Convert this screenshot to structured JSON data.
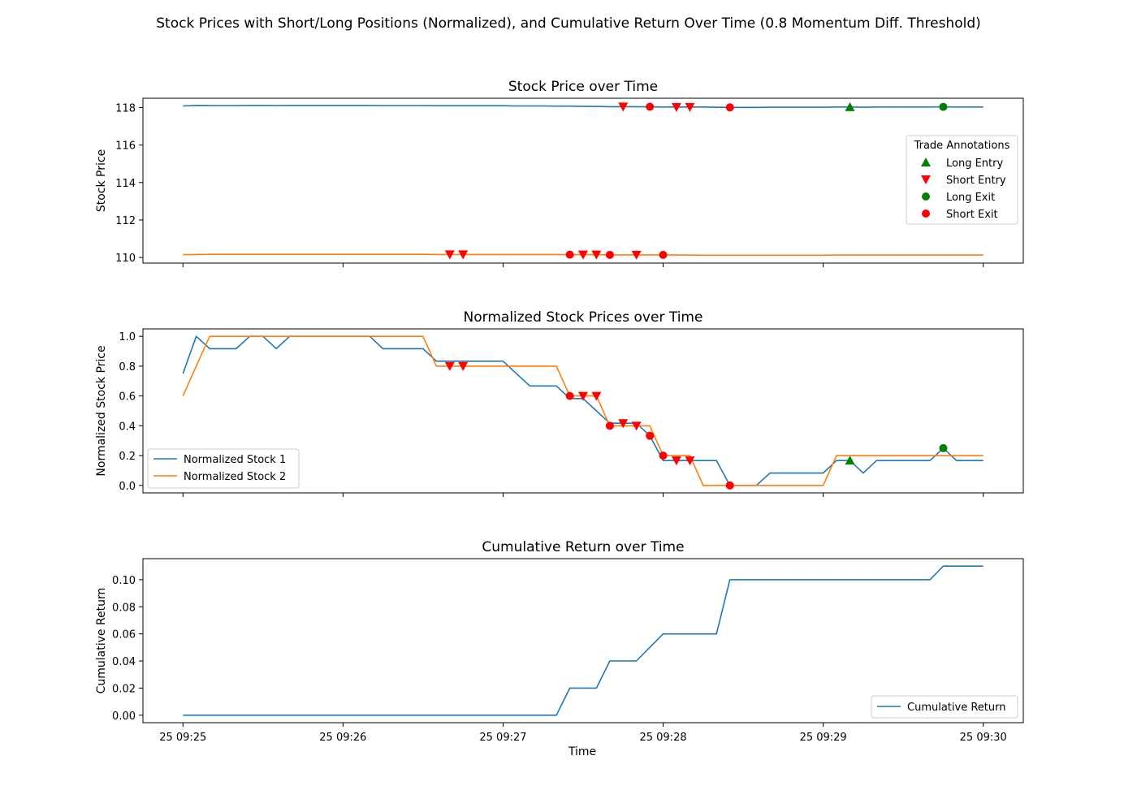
{
  "suptitle": "Stock Prices with Short/Long Positions (Normalized), and Cumulative Return Over Time (0.8 Momentum Diff. Threshold)",
  "x_tick_labels": [
    "25 09:25",
    "25 09:26",
    "25 09:27",
    "25 09:28",
    "25 09:29",
    "25 09:30"
  ],
  "x_label": "Time",
  "colors": {
    "series1": "#1f77b4",
    "series2": "#ff7f0e",
    "long": "#008000",
    "short": "#ff0000"
  },
  "chart_data": [
    {
      "type": "line",
      "title": "Stock Price over Time",
      "xlabel": "",
      "ylabel": "Stock Price",
      "xlim": [
        -0.25,
        5.25
      ],
      "ylim": [
        109.7,
        118.5
      ],
      "yticks": [
        110,
        112,
        114,
        116,
        118
      ],
      "ytick_labels": [
        "110",
        "112",
        "114",
        "116",
        "118"
      ],
      "series": [
        {
          "key": "series1",
          "x": [
            0,
            0.083,
            0.167,
            0.25,
            0.333,
            0.417,
            0.5,
            0.583,
            0.667,
            0.75,
            0.833,
            0.917,
            1.0,
            1.083,
            1.167,
            1.25,
            1.333,
            1.417,
            1.5,
            1.583,
            1.667,
            1.75,
            1.833,
            1.917,
            2.0,
            2.083,
            2.167,
            2.25,
            2.333,
            2.417,
            2.5,
            2.583,
            2.667,
            2.75,
            2.833,
            2.917,
            3.0,
            3.083,
            3.167,
            3.25,
            3.333,
            3.417,
            3.5,
            3.583,
            3.667,
            3.75,
            3.833,
            3.917,
            4.0,
            4.083,
            4.167,
            4.25,
            4.333,
            4.417,
            4.5,
            4.583,
            4.667,
            4.75,
            4.833,
            4.917,
            5.0
          ],
          "y": [
            118.09,
            118.12,
            118.11,
            118.11,
            118.11,
            118.12,
            118.12,
            118.11,
            118.12,
            118.12,
            118.12,
            118.12,
            118.12,
            118.12,
            118.12,
            118.11,
            118.11,
            118.11,
            118.11,
            118.1,
            118.1,
            118.1,
            118.1,
            118.1,
            118.1,
            118.09,
            118.09,
            118.09,
            118.08,
            118.08,
            118.07,
            118.06,
            118.05,
            118.05,
            118.05,
            118.04,
            118.03,
            118.03,
            118.03,
            118.03,
            118.02,
            118.01,
            118.01,
            118.01,
            118.02,
            118.02,
            118.02,
            118.02,
            118.02,
            118.03,
            118.03,
            118.02,
            118.03,
            118.03,
            118.03,
            118.03,
            118.03,
            118.04,
            118.03,
            118.03,
            118.03
          ]
        },
        {
          "key": "series2",
          "x": [
            0,
            0.083,
            0.167,
            0.25,
            0.333,
            0.417,
            0.5,
            0.583,
            0.667,
            0.75,
            0.833,
            0.917,
            1.0,
            1.083,
            1.167,
            1.25,
            1.333,
            1.417,
            1.5,
            1.583,
            1.667,
            1.75,
            1.833,
            1.917,
            2.0,
            2.083,
            2.167,
            2.25,
            2.333,
            2.417,
            2.5,
            2.583,
            2.667,
            2.75,
            2.833,
            2.917,
            3.0,
            3.083,
            3.167,
            3.25,
            3.333,
            3.417,
            3.5,
            3.583,
            3.667,
            3.75,
            3.833,
            3.917,
            4.0,
            4.083,
            4.167,
            4.25,
            4.333,
            4.417,
            4.5,
            4.583,
            4.667,
            4.75,
            4.833,
            4.917,
            5.0
          ],
          "y": [
            110.15,
            110.16,
            110.17,
            110.17,
            110.17,
            110.17,
            110.17,
            110.17,
            110.17,
            110.17,
            110.17,
            110.17,
            110.17,
            110.17,
            110.17,
            110.17,
            110.17,
            110.17,
            110.17,
            110.16,
            110.16,
            110.16,
            110.16,
            110.16,
            110.16,
            110.16,
            110.16,
            110.16,
            110.16,
            110.15,
            110.15,
            110.15,
            110.14,
            110.14,
            110.14,
            110.14,
            110.14,
            110.13,
            110.13,
            110.12,
            110.12,
            110.12,
            110.12,
            110.12,
            110.12,
            110.12,
            110.12,
            110.12,
            110.12,
            110.13,
            110.13,
            110.13,
            110.13,
            110.13,
            110.13,
            110.13,
            110.13,
            110.13,
            110.13,
            110.13,
            110.13
          ]
        }
      ],
      "markers": [
        {
          "kind": "short_entry",
          "x": 2.75,
          "y": 118.05
        },
        {
          "kind": "short_exit",
          "x": 2.917,
          "y": 118.05
        },
        {
          "kind": "short_entry",
          "x": 3.083,
          "y": 118.03
        },
        {
          "kind": "short_entry",
          "x": 3.167,
          "y": 118.03
        },
        {
          "kind": "short_exit",
          "x": 3.417,
          "y": 118.01
        },
        {
          "kind": "long_entry",
          "x": 4.167,
          "y": 118.03
        },
        {
          "kind": "long_exit",
          "x": 4.75,
          "y": 118.04
        },
        {
          "kind": "short_entry",
          "x": 1.667,
          "y": 110.16
        },
        {
          "kind": "short_entry",
          "x": 1.75,
          "y": 110.16
        },
        {
          "kind": "short_exit",
          "x": 2.417,
          "y": 110.15
        },
        {
          "kind": "short_entry",
          "x": 2.5,
          "y": 110.15
        },
        {
          "kind": "short_entry",
          "x": 2.583,
          "y": 110.15
        },
        {
          "kind": "short_exit",
          "x": 2.667,
          "y": 110.14
        },
        {
          "kind": "short_entry",
          "x": 2.833,
          "y": 110.14
        },
        {
          "kind": "short_exit",
          "x": 3.0,
          "y": 110.14
        }
      ],
      "legend": {
        "title": "Trade Annotations",
        "placement": "center-right",
        "entries": [
          {
            "label": "Long Entry",
            "kind": "long_entry"
          },
          {
            "label": "Short Entry",
            "kind": "short_entry"
          },
          {
            "label": "Long Exit",
            "kind": "long_exit"
          },
          {
            "label": "Short Exit",
            "kind": "short_exit"
          }
        ]
      }
    },
    {
      "type": "line",
      "title": "Normalized Stock Prices over Time",
      "xlabel": "",
      "ylabel": "Normalized Stock Price",
      "xlim": [
        -0.25,
        5.25
      ],
      "ylim": [
        -0.05,
        1.05
      ],
      "yticks": [
        0.0,
        0.2,
        0.4,
        0.6,
        0.8,
        1.0
      ],
      "ytick_labels": [
        "0.0",
        "0.2",
        "0.4",
        "0.6",
        "0.8",
        "1.0"
      ],
      "series": [
        {
          "key": "series1",
          "name": "Normalized Stock 1",
          "x": [
            0,
            0.083,
            0.167,
            0.25,
            0.333,
            0.417,
            0.5,
            0.583,
            0.667,
            0.75,
            0.833,
            0.917,
            1.0,
            1.083,
            1.167,
            1.25,
            1.333,
            1.417,
            1.5,
            1.583,
            1.667,
            1.75,
            1.833,
            1.917,
            2.0,
            2.083,
            2.167,
            2.25,
            2.333,
            2.417,
            2.5,
            2.583,
            2.667,
            2.75,
            2.833,
            2.917,
            3.0,
            3.083,
            3.167,
            3.25,
            3.333,
            3.417,
            3.5,
            3.583,
            3.667,
            3.75,
            3.833,
            3.917,
            4.0,
            4.083,
            4.167,
            4.25,
            4.333,
            4.417,
            4.5,
            4.583,
            4.667,
            4.75,
            4.833,
            4.917,
            5.0
          ],
          "y": [
            0.75,
            1.0,
            0.917,
            0.917,
            0.917,
            1.0,
            1.0,
            0.917,
            1.0,
            1.0,
            1.0,
            1.0,
            1.0,
            1.0,
            1.0,
            0.917,
            0.917,
            0.917,
            0.917,
            0.833,
            0.833,
            0.833,
            0.833,
            0.833,
            0.833,
            0.75,
            0.667,
            0.667,
            0.667,
            0.583,
            0.583,
            0.5,
            0.417,
            0.417,
            0.417,
            0.333,
            0.167,
            0.167,
            0.167,
            0.167,
            0.167,
            0.0,
            0.0,
            0.0,
            0.083,
            0.083,
            0.083,
            0.083,
            0.083,
            0.167,
            0.167,
            0.083,
            0.167,
            0.167,
            0.167,
            0.167,
            0.167,
            0.25,
            0.167,
            0.167,
            0.167
          ]
        },
        {
          "key": "series2",
          "name": "Normalized Stock 2",
          "x": [
            0,
            0.083,
            0.167,
            0.25,
            0.333,
            0.417,
            0.5,
            0.583,
            0.667,
            0.75,
            0.833,
            0.917,
            1.0,
            1.083,
            1.167,
            1.25,
            1.333,
            1.417,
            1.5,
            1.583,
            1.667,
            1.75,
            1.833,
            1.917,
            2.0,
            2.083,
            2.167,
            2.25,
            2.333,
            2.417,
            2.5,
            2.583,
            2.667,
            2.75,
            2.833,
            2.917,
            3.0,
            3.083,
            3.167,
            3.25,
            3.333,
            3.417,
            3.5,
            3.583,
            3.667,
            3.75,
            3.833,
            3.917,
            4.0,
            4.083,
            4.167,
            4.25,
            4.333,
            4.417,
            4.5,
            4.583,
            4.667,
            4.75,
            4.833,
            4.917,
            5.0
          ],
          "y": [
            0.6,
            0.8,
            1.0,
            1.0,
            1.0,
            1.0,
            1.0,
            1.0,
            1.0,
            1.0,
            1.0,
            1.0,
            1.0,
            1.0,
            1.0,
            1.0,
            1.0,
            1.0,
            1.0,
            0.8,
            0.8,
            0.8,
            0.8,
            0.8,
            0.8,
            0.8,
            0.8,
            0.8,
            0.8,
            0.6,
            0.6,
            0.6,
            0.4,
            0.4,
            0.4,
            0.4,
            0.2,
            0.2,
            0.2,
            0.0,
            0.0,
            0.0,
            0.0,
            0.0,
            0.0,
            0.0,
            0.0,
            0.0,
            0.0,
            0.2,
            0.2,
            0.2,
            0.2,
            0.2,
            0.2,
            0.2,
            0.2,
            0.2,
            0.2,
            0.2,
            0.2
          ]
        }
      ],
      "markers": [
        {
          "kind": "short_entry",
          "x": 1.667,
          "y": 0.8
        },
        {
          "kind": "short_entry",
          "x": 1.75,
          "y": 0.8
        },
        {
          "kind": "short_exit",
          "x": 2.417,
          "y": 0.6
        },
        {
          "kind": "short_entry",
          "x": 2.5,
          "y": 0.6
        },
        {
          "kind": "short_entry",
          "x": 2.583,
          "y": 0.6
        },
        {
          "kind": "short_exit",
          "x": 2.667,
          "y": 0.4
        },
        {
          "kind": "short_entry",
          "x": 2.75,
          "y": 0.417
        },
        {
          "kind": "short_entry",
          "x": 2.833,
          "y": 0.4
        },
        {
          "kind": "short_exit",
          "x": 2.917,
          "y": 0.333
        },
        {
          "kind": "short_exit",
          "x": 3.0,
          "y": 0.2
        },
        {
          "kind": "short_entry",
          "x": 3.083,
          "y": 0.167
        },
        {
          "kind": "short_entry",
          "x": 3.167,
          "y": 0.167
        },
        {
          "kind": "short_exit",
          "x": 3.417,
          "y": 0.0
        },
        {
          "kind": "long_entry",
          "x": 4.167,
          "y": 0.167
        },
        {
          "kind": "long_exit",
          "x": 4.75,
          "y": 0.25
        }
      ],
      "legend": {
        "placement": "lower-left",
        "entries": [
          {
            "label": "Normalized Stock 1",
            "key": "series1"
          },
          {
            "label": "Normalized Stock 2",
            "key": "series2"
          }
        ]
      }
    },
    {
      "type": "line",
      "title": "Cumulative Return over Time",
      "xlabel": "Time",
      "ylabel": "Cumulative Return",
      "xlim": [
        -0.25,
        5.25
      ],
      "ylim": [
        -0.0055,
        0.1155
      ],
      "yticks": [
        0.0,
        0.02,
        0.04,
        0.06,
        0.08,
        0.1
      ],
      "ytick_labels": [
        "0.00",
        "0.02",
        "0.04",
        "0.06",
        "0.08",
        "0.10"
      ],
      "series": [
        {
          "key": "series1",
          "name": "Cumulative Return",
          "x": [
            0,
            2.333,
            2.417,
            2.583,
            2.667,
            2.833,
            3.0,
            3.333,
            3.417,
            4.667,
            4.75,
            5.0
          ],
          "y": [
            0.0,
            0.0,
            0.02,
            0.02,
            0.04,
            0.04,
            0.06,
            0.06,
            0.1,
            0.1,
            0.11,
            0.11
          ]
        }
      ],
      "markers": [],
      "legend": {
        "placement": "lower-right",
        "entries": [
          {
            "label": "Cumulative Return",
            "key": "series1"
          }
        ]
      }
    }
  ]
}
